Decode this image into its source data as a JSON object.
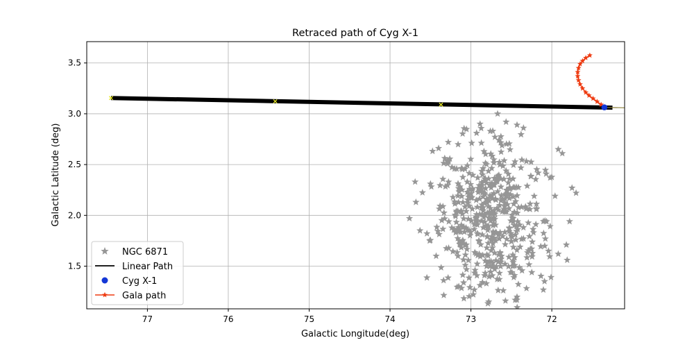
{
  "chart_data": {
    "type": "scatter",
    "title": "Retraced path of Cyg X-1",
    "xlabel": "Galactic Longitude(deg)",
    "ylabel": "Galactic Latitude (deg)",
    "x_inverted": true,
    "xlim": [
      77.75,
      71.1
    ],
    "ylim": [
      1.08,
      3.71
    ],
    "xticks": [
      77,
      76,
      75,
      74,
      73,
      72
    ],
    "yticks": [
      1.5,
      2.0,
      2.5,
      3.0,
      3.5
    ],
    "xtick_labels": [
      "77",
      "76",
      "75",
      "74",
      "73",
      "72"
    ],
    "ytick_labels": [
      "1.5",
      "2.0",
      "2.5",
      "3.0",
      "3.5"
    ],
    "grid": true,
    "legend_position": "lower-left",
    "legend": [
      "NGC 6871",
      "Linear Path",
      "Cyg X-1",
      "Gala path"
    ],
    "cluster": {
      "name": "NGC 6871",
      "color": "#969696",
      "center": [
        72.78,
        1.97
      ],
      "spread": [
        0.34,
        0.38
      ],
      "count": 520,
      "sample_points": [
        [
          72.67,
          3.0
        ],
        [
          72.43,
          2.89
        ],
        [
          72.35,
          2.86
        ],
        [
          72.73,
          2.83
        ],
        [
          72.93,
          2.81
        ],
        [
          71.92,
          2.65
        ],
        [
          71.87,
          2.61
        ],
        [
          73.28,
          2.72
        ],
        [
          73.4,
          2.66
        ],
        [
          73.69,
          2.33
        ],
        [
          73.68,
          2.13
        ],
        [
          73.5,
          2.31
        ],
        [
          71.75,
          2.27
        ],
        [
          71.7,
          2.22
        ],
        [
          71.96,
          2.19
        ],
        [
          71.78,
          1.94
        ],
        [
          71.82,
          1.71
        ],
        [
          71.92,
          1.62
        ],
        [
          71.81,
          1.56
        ],
        [
          72.09,
          1.35
        ],
        [
          73.76,
          1.97
        ],
        [
          73.63,
          1.85
        ],
        [
          73.51,
          1.75
        ],
        [
          73.43,
          1.6
        ],
        [
          73.15,
          1.3
        ],
        [
          72.97,
          1.22
        ],
        [
          72.78,
          1.15
        ],
        [
          72.6,
          1.26
        ],
        [
          72.47,
          1.39
        ],
        [
          72.02,
          2.37
        ]
      ]
    },
    "linear_path": {
      "name": "Linear Path",
      "color": "#000000",
      "x": [
        77.45,
        71.25
      ],
      "y": [
        3.155,
        3.06
      ],
      "extension": {
        "color": "#8b7f3a",
        "x": [
          71.36,
          71.1
        ],
        "y": [
          3.063,
          3.059
        ]
      }
    },
    "linear_path_markers": {
      "color": "#e8e829",
      "x": [
        77.45,
        75.42,
        73.37
      ],
      "y": [
        3.155,
        3.122,
        3.09
      ]
    },
    "source": {
      "name": "Cyg X-1",
      "color": "#1437d6",
      "x": 71.35,
      "y": 3.063
    },
    "gala_path": {
      "name": "Gala path",
      "color": "#ee3a10",
      "x": [
        71.35,
        71.39,
        71.44,
        71.49,
        71.54,
        71.58,
        71.62,
        71.65,
        71.67,
        71.68,
        71.68,
        71.67,
        71.65,
        71.62,
        71.58,
        71.53
      ],
      "y": [
        3.063,
        3.09,
        3.12,
        3.15,
        3.18,
        3.21,
        3.25,
        3.29,
        3.33,
        3.37,
        3.41,
        3.45,
        3.49,
        3.52,
        3.55,
        3.575
      ]
    }
  }
}
